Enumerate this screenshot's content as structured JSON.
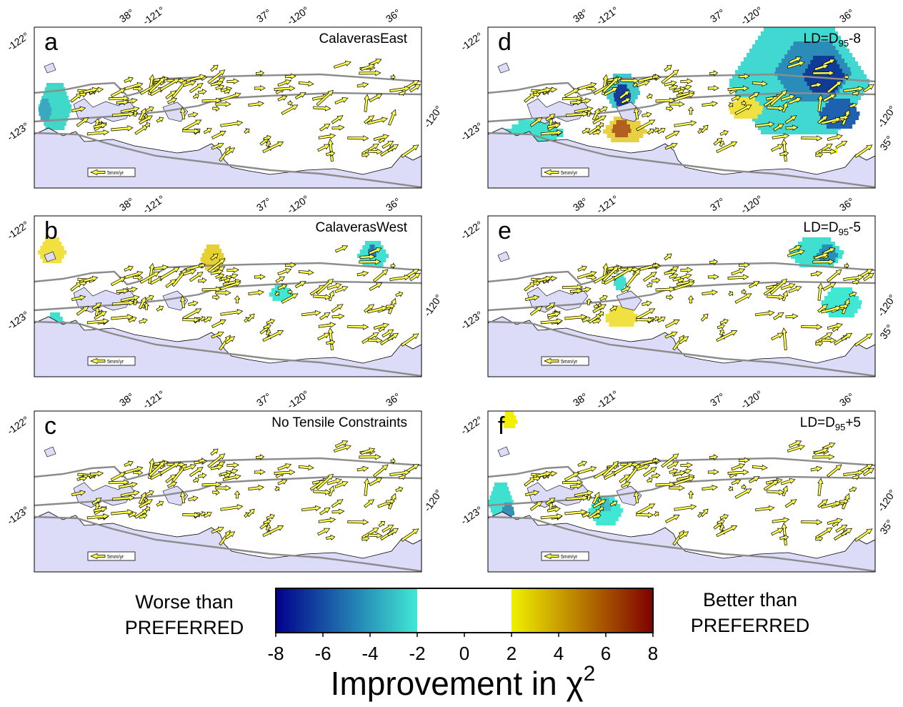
{
  "panels": [
    {
      "letter": "a",
      "title": "CalaverasEast",
      "top_labels": [
        "38°",
        "-121°",
        "37°",
        "-120°",
        "36°"
      ],
      "left_labels": [
        "-122°",
        "-123°"
      ],
      "right_labels": [
        "-120°"
      ],
      "scale_label": "5mm/yr"
    },
    {
      "letter": "b",
      "title": "CalaverasWest",
      "top_labels": [
        "38°",
        "-121°",
        "37°",
        "-120°",
        "36°"
      ],
      "left_labels": [
        "-122°",
        "-123°"
      ],
      "right_labels": [
        "-120°"
      ],
      "scale_label": "5mm/yr"
    },
    {
      "letter": "c",
      "title": "No Tensile Constraints",
      "top_labels": [
        "38°",
        "-121°",
        "37°",
        "-120°",
        "36°"
      ],
      "left_labels": [
        "-122°",
        "-123°"
      ],
      "right_labels": [
        "-120°"
      ],
      "scale_label": "5mm/yr"
    },
    {
      "letter": "d",
      "title": {
        "text": "LD=D",
        "subscript": "95",
        "suffix": "-8"
      },
      "top_labels": [
        "38°",
        "-121°",
        "37°",
        "-120°",
        "36°"
      ],
      "left_labels": [
        "-122°",
        "-123°"
      ],
      "right_labels": [
        "-120°",
        "35°"
      ],
      "scale_label": "5mm/yr"
    },
    {
      "letter": "e",
      "title": {
        "text": "LD=D",
        "subscript": "95",
        "suffix": "-5"
      },
      "top_labels": [
        "38°",
        "-121°",
        "37°",
        "-120°",
        "36°"
      ],
      "left_labels": [
        "-122°",
        "-123°"
      ],
      "right_labels": [
        "-120°",
        "35°"
      ],
      "scale_label": "5mm/yr"
    },
    {
      "letter": "f",
      "title": {
        "text": "LD=D",
        "subscript": "95",
        "suffix": "+5"
      },
      "top_labels": [
        "38°",
        "-121°",
        "37°",
        "-120°",
        "36°"
      ],
      "left_labels": [
        "-122°",
        "-123°"
      ],
      "right_labels": [
        "-120°",
        "35°"
      ],
      "scale_label": "5mm/yr"
    }
  ],
  "colorbar": {
    "left_label": [
      "Worse than",
      "PREFERRED"
    ],
    "right_label": [
      "Better than",
      "PREFERRED"
    ],
    "title": {
      "text": "Improvement in χ",
      "superscript": "2"
    },
    "lim": [
      -8,
      8
    ],
    "ticks": [
      -8,
      -6,
      -4,
      -2,
      0,
      2,
      4,
      6,
      8
    ],
    "neutral_range": [
      -2,
      2
    ],
    "colors": [
      "#00008b",
      "#40e8d4",
      "#ffffff",
      "#f0f000",
      "#7f0000"
    ]
  }
}
